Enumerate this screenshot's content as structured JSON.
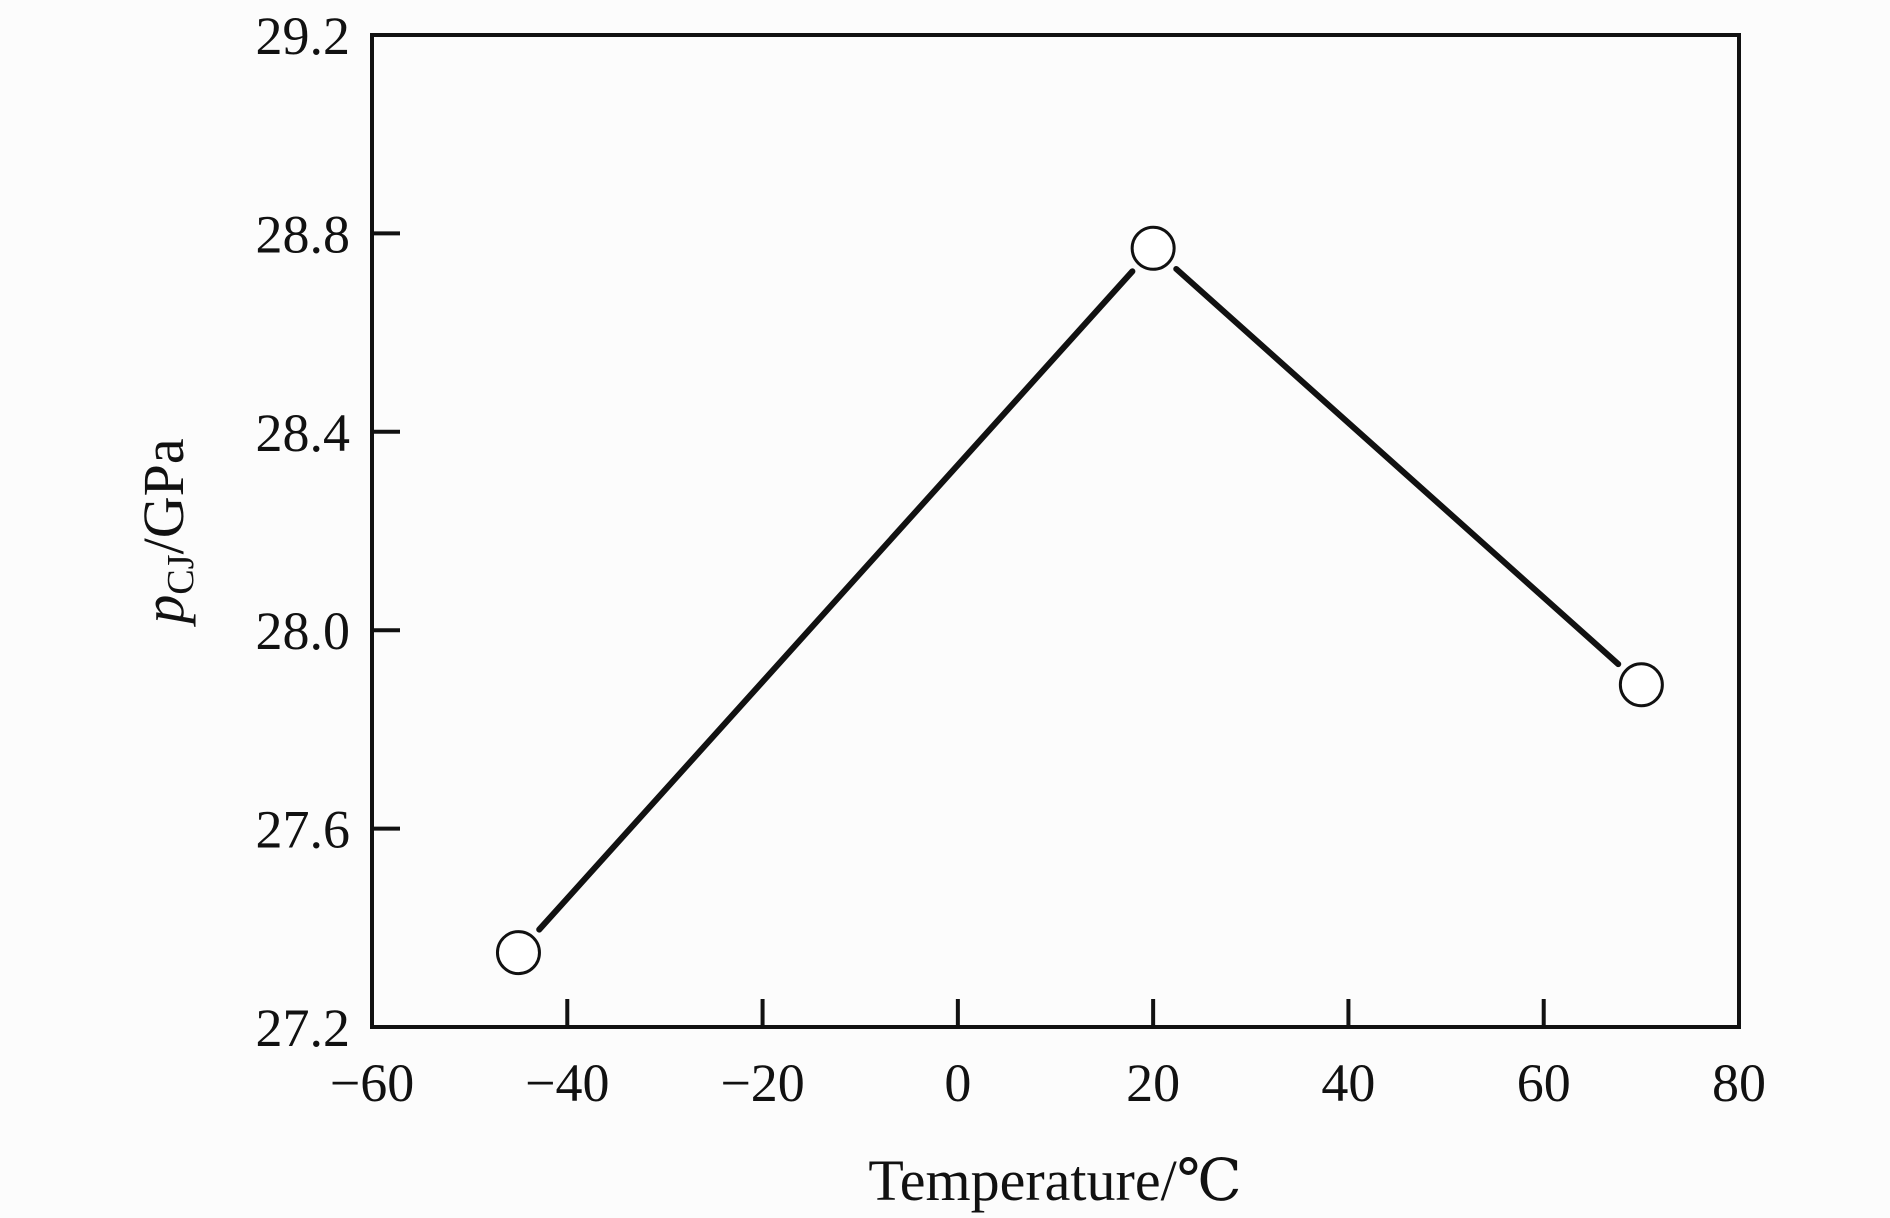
{
  "chart_data": {
    "type": "line",
    "xlabel": "Temperature/℃",
    "ylabel_main": "p",
    "ylabel_sub": "CJ",
    "ylabel_unit": "/GPa",
    "xlim": [
      -60,
      80
    ],
    "ylim": [
      27.2,
      29.2
    ],
    "xticks": [
      "−60",
      "−40",
      "−20",
      "0",
      "20",
      "40",
      "60",
      "80"
    ],
    "yticks": [
      "27.2",
      "27.6",
      "28.0",
      "28.4",
      "28.8",
      "29.2"
    ],
    "grid": false,
    "series": [
      {
        "x": [
          -45,
          20,
          70
        ],
        "y": [
          27.35,
          28.77,
          27.89
        ]
      }
    ],
    "colors": {
      "line": "#111111",
      "marker_fill": "#ffffff",
      "frame": "#111111"
    }
  }
}
